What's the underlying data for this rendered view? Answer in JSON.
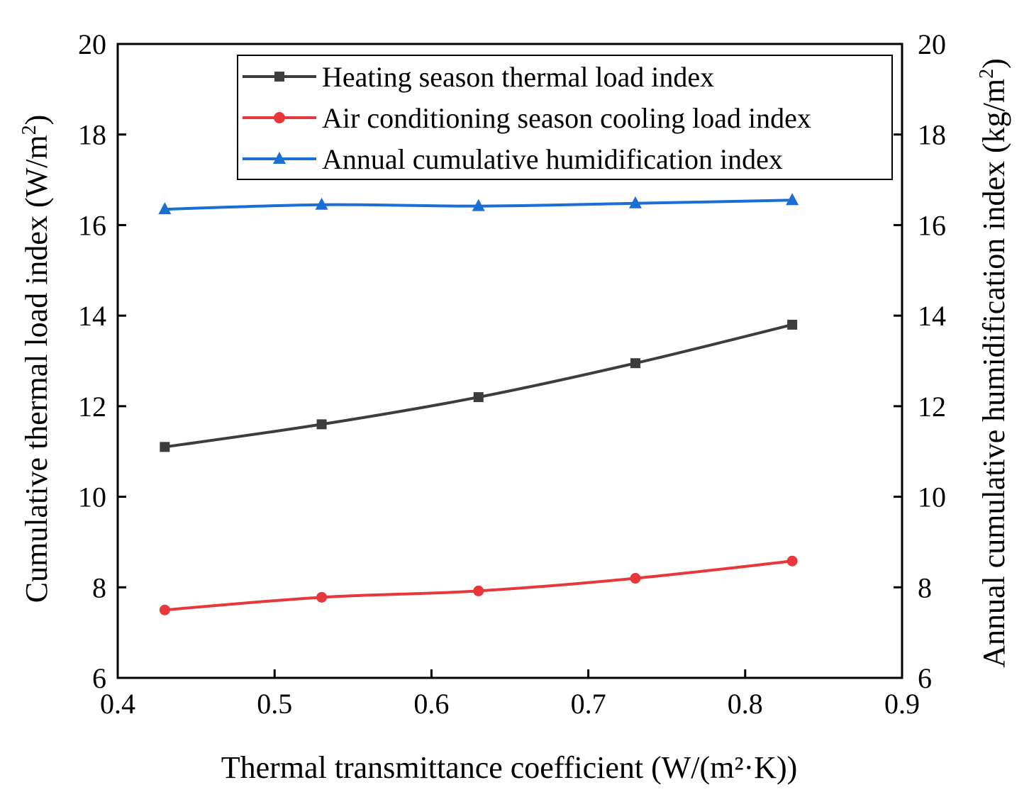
{
  "chart_data": {
    "type": "line",
    "xlabel": "Thermal transmittance coefficient  (W/(m²·K))",
    "ylabel_left": "Cumulative thermal load  index (W/m",
    "ylabel_left_sup": "2",
    "ylabel_left_close": ")",
    "ylabel_right": "Annual cumulative humidification index (kg/m",
    "ylabel_right_sup": "2",
    "ylabel_right_close": ")",
    "xlim": [
      0.4,
      0.9
    ],
    "ylim_left": [
      6,
      20
    ],
    "ylim_right": [
      6,
      20
    ],
    "x_ticks": [
      "0.4",
      "0.5",
      "0.6",
      "0.7",
      "0.8",
      "0.9"
    ],
    "y_ticks_left": [
      "6",
      "8",
      "10",
      "12",
      "14",
      "16",
      "18",
      "20"
    ],
    "y_ticks_right": [
      "6",
      "8",
      "10",
      "12",
      "14",
      "16",
      "18",
      "20"
    ],
    "x": [
      0.43,
      0.53,
      0.63,
      0.73,
      0.83
    ],
    "series": [
      {
        "name": "Heating season thermal load index",
        "axis": "left",
        "color": "#3d3d3d",
        "marker": "square",
        "values": [
          11.1,
          11.6,
          12.2,
          12.95,
          13.8
        ]
      },
      {
        "name": "Air conditioning season cooling load index",
        "axis": "left",
        "color": "#e8373b",
        "marker": "circle",
        "values": [
          7.5,
          7.78,
          7.92,
          8.2,
          8.58
        ]
      },
      {
        "name": "Annual cumulative humidification index",
        "axis": "right",
        "color": "#1a6fd4",
        "marker": "triangle",
        "values": [
          16.35,
          16.45,
          16.42,
          16.48,
          16.55
        ]
      }
    ],
    "legend_position": "top-right"
  }
}
